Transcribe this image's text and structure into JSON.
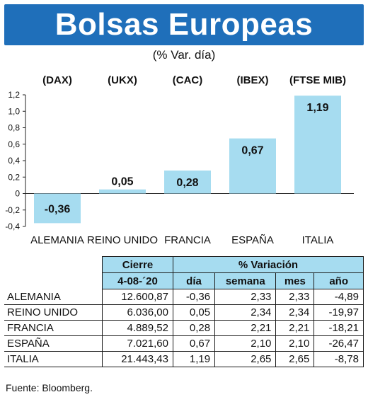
{
  "title": "Bolsas Europeas",
  "subtitle": "(% Var. día)",
  "chart_data": {
    "type": "bar",
    "categories": [
      "ALEMANIA",
      "REINO UNIDO",
      "FRANCIA",
      "ESPAÑA",
      "ITALIA"
    ],
    "index_codes": [
      "(DAX)",
      "(UKX)",
      "(CAC)",
      "(IBEX)",
      "(FTSE MIB)"
    ],
    "values": [
      -0.36,
      0.05,
      0.28,
      0.67,
      1.19
    ],
    "value_labels": [
      "-0,36",
      "0,05",
      "0,28",
      "0,67",
      "1,19"
    ],
    "ylim": [
      -0.4,
      1.2
    ],
    "yticks": [
      -0.4,
      -0.2,
      0,
      0.2,
      0.4,
      0.6,
      0.8,
      1.0,
      1.2
    ],
    "ytick_labels": [
      "-0,4",
      "-0,2",
      "0",
      "0,2",
      "0,4",
      "0,6",
      "0,8",
      "1,0",
      "1,2"
    ],
    "bar_color": "#a6dcf0",
    "grid": false,
    "title": "",
    "xlabel": "",
    "ylabel": ""
  },
  "table": {
    "header_top": [
      "",
      "Cierre",
      "% Variación"
    ],
    "header_sub": [
      "",
      "4-08-´20",
      "día",
      "semana",
      "mes",
      "año"
    ],
    "rows": [
      [
        "ALEMANIA",
        "12.600,87",
        "-0,36",
        "2,33",
        "2,33",
        "-4,89"
      ],
      [
        "REINO UNIDO",
        "6.036,00",
        "0,05",
        "2,34",
        "2,34",
        "-19,97"
      ],
      [
        "FRANCIA",
        "4.889,52",
        "0,28",
        "2,21",
        "2,21",
        "-18,21"
      ],
      [
        "ESPAÑA",
        "7.021,60",
        "0,67",
        "2,10",
        "2,10",
        "-26,47"
      ],
      [
        "ITALIA",
        "21.443,43",
        "1,19",
        "2,65",
        "2,65",
        "-8,78"
      ]
    ],
    "header_color": "#a6dcf0"
  },
  "source": "Fuente: Bloomberg.",
  "colors": {
    "banner": "#1f6fba"
  }
}
